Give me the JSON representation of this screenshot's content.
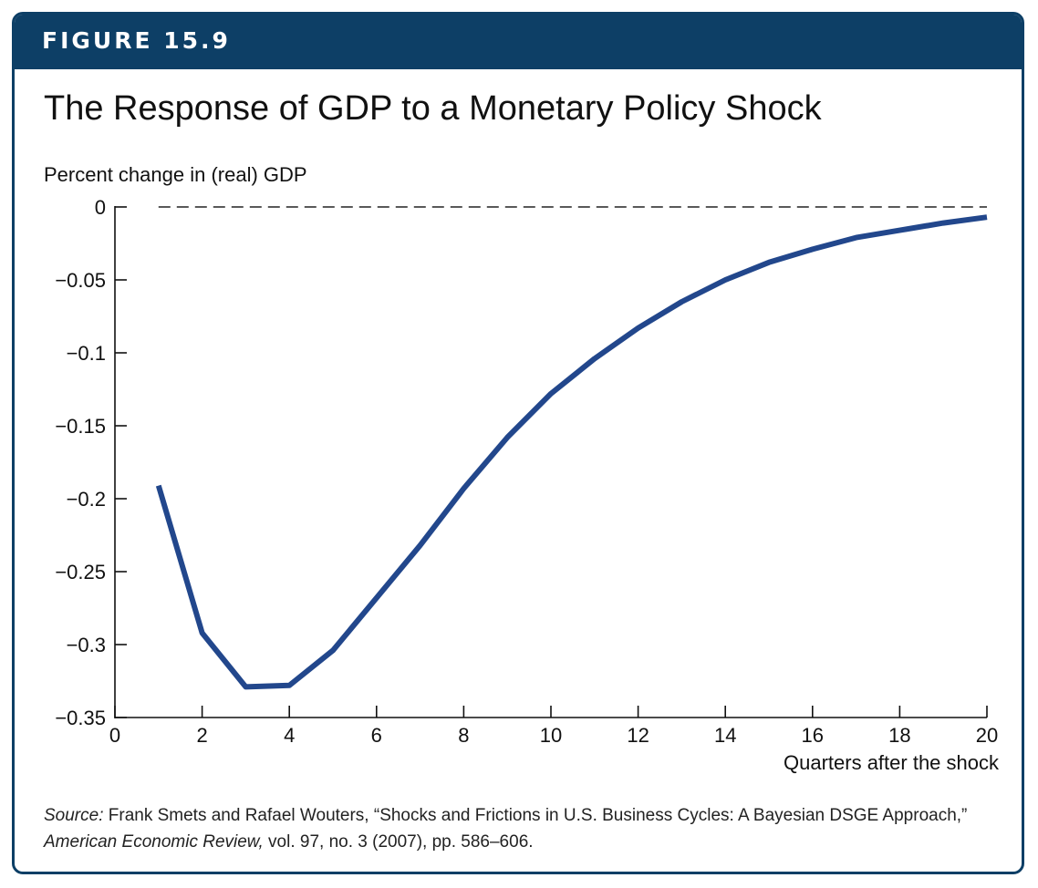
{
  "figure_label": "FIGURE 15.9",
  "title": "The Response of GDP to a Monetary Policy Shock",
  "source": {
    "label": "Source:",
    "text1": " Frank Smets and Rafael Wouters, “Shocks and Frictions in U.S. Business Cycles: A Bayesian DSGE Approach,” ",
    "journal": "American Economic Review,",
    "text2": " vol. 97, no. 3 (2007), pp. 586–606."
  },
  "colors": {
    "header": "#0d3f66",
    "line": "#22478c"
  },
  "chart_data": {
    "type": "line",
    "xlabel": "Quarters after the shock",
    "ylabel": "Percent change in (real) GDP",
    "xlim": [
      0,
      20
    ],
    "ylim": [
      -0.35,
      0
    ],
    "x_ticks": [
      0,
      2,
      4,
      6,
      8,
      10,
      12,
      14,
      16,
      18,
      20
    ],
    "x_tick_labels": [
      "0",
      "2",
      "4",
      "6",
      "8",
      "10",
      "12",
      "14",
      "16",
      "18",
      "20"
    ],
    "y_ticks": [
      0,
      -0.05,
      -0.1,
      -0.15,
      -0.2,
      -0.25,
      -0.3,
      -0.35
    ],
    "y_tick_labels": [
      "0",
      "−0.05",
      "−0.1",
      "−0.15",
      "−0.2",
      "−0.25",
      "−0.3",
      "−0.35"
    ],
    "reference_line": {
      "y": 0,
      "style": "dashed"
    },
    "series": [
      {
        "x": [
          1,
          2,
          3,
          4,
          5,
          6,
          7,
          8,
          9,
          10,
          11,
          12,
          13,
          14,
          15,
          16,
          17,
          18,
          19,
          20
        ],
        "y": [
          -0.191,
          -0.292,
          -0.329,
          -0.328,
          -0.304,
          -0.268,
          -0.232,
          -0.193,
          -0.158,
          -0.128,
          -0.104,
          -0.083,
          -0.065,
          -0.05,
          -0.038,
          -0.029,
          -0.021,
          -0.016,
          -0.011,
          -0.007
        ]
      }
    ]
  }
}
